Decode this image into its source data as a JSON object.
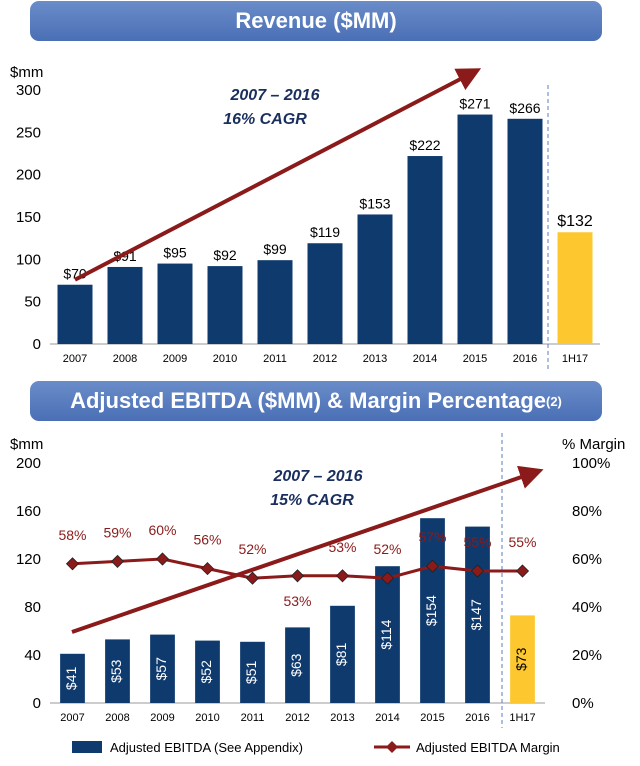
{
  "colors": {
    "bar": "#0f3a6e",
    "highlight": "#fdc82f",
    "arrow": "#8b1a1a",
    "cagr": "#1b2f5e",
    "margin_line": "#8b1a1a",
    "banner": "#5a7fc0"
  },
  "chart_data": [
    {
      "type": "bar",
      "title": "Revenue ($MM)",
      "ylabel": "$mm",
      "ylim": [
        0,
        300
      ],
      "yticks": [
        0,
        50,
        100,
        150,
        200,
        250,
        300
      ],
      "categories": [
        "2007",
        "2008",
        "2009",
        "2010",
        "2011",
        "2012",
        "2013",
        "2014",
        "2015",
        "2016",
        "1H17"
      ],
      "values": [
        70,
        91,
        95,
        92,
        99,
        119,
        153,
        222,
        271,
        266,
        132
      ],
      "data_labels": [
        "$70",
        "$91",
        "$95",
        "$92",
        "$99",
        "$119",
        "$153",
        "$222",
        "$271",
        "$266",
        "$132"
      ],
      "highlight_category": "1H17",
      "annotation": {
        "line1": "2007 – 2016",
        "line2": "16% CAGR"
      }
    },
    {
      "type": "bar",
      "title": "Adjusted EBITDA ($MM) & Margin Percentage",
      "title_sup": "(2)",
      "ylabel": "$mm",
      "y2label": "% Margin",
      "ylim": [
        0,
        200
      ],
      "yticks": [
        0,
        40,
        80,
        120,
        160,
        200
      ],
      "y2lim": [
        0,
        100
      ],
      "y2ticks": [
        "0%",
        "20%",
        "40%",
        "60%",
        "80%",
        "100%"
      ],
      "categories": [
        "2007",
        "2008",
        "2009",
        "2010",
        "2011",
        "2012",
        "2013",
        "2014",
        "2015",
        "2016",
        "1H17"
      ],
      "highlight_category": "1H17",
      "series": [
        {
          "name": "Adjusted EBITDA (See Appendix)",
          "type": "bar",
          "values": [
            41,
            53,
            57,
            52,
            51,
            63,
            81,
            114,
            154,
            147,
            73
          ],
          "data_labels": [
            "$41",
            "$53",
            "$57",
            "$52",
            "$51",
            "$63",
            "$81",
            "$114",
            "$154",
            "$147",
            "$73"
          ]
        },
        {
          "name": "Adjusted EBITDA Margin",
          "type": "line",
          "values": [
            58,
            59,
            60,
            56,
            52,
            53,
            53,
            52,
            57,
            55,
            55
          ],
          "data_labels": [
            "58%",
            "59%",
            "60%",
            "56%",
            "52%",
            "53%",
            "53%",
            "52%",
            "57%",
            "55%",
            "55%"
          ]
        }
      ],
      "annotation": {
        "line1": "2007 – 2016",
        "line2": "15% CAGR"
      }
    }
  ]
}
